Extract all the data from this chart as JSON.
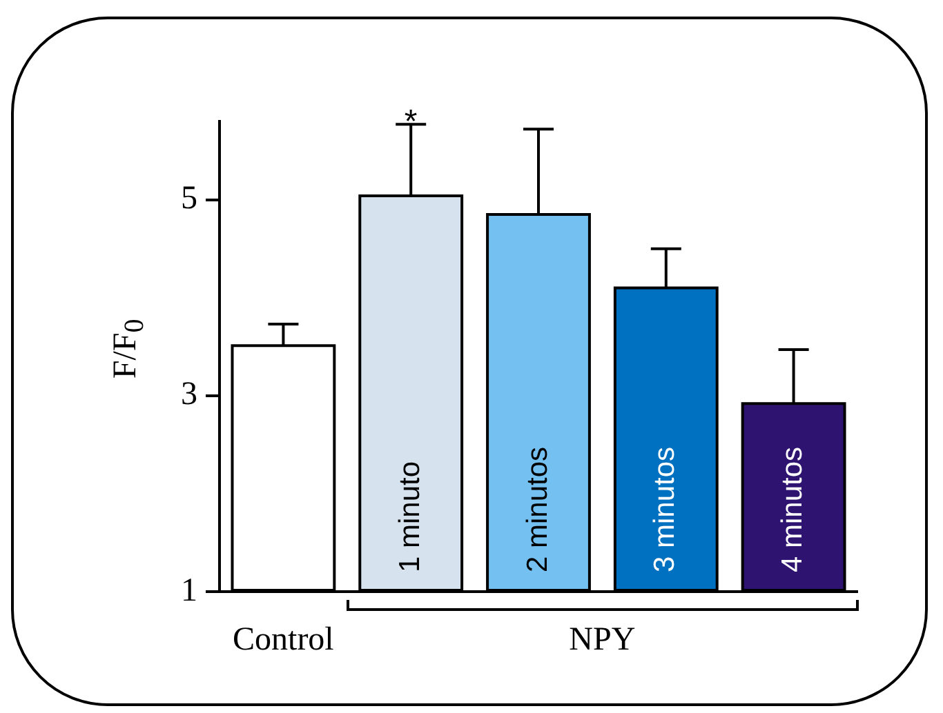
{
  "chart_data": {
    "type": "bar",
    "ylabel": "F/F$_{0}$",
    "categories": [
      "Control",
      "1 minuto",
      "2 minutos",
      "3 minutos",
      "4 minutos"
    ],
    "values": [
      3.51,
      5.04,
      4.85,
      4.1,
      2.92
    ],
    "errors": [
      0.22,
      0.73,
      0.87,
      0.4,
      0.55
    ],
    "colors": [
      "#ffffff",
      "#d6e2ee",
      "#74c0f0",
      "#0070c0",
      "#2e1470"
    ],
    "ylim": [
      1,
      5.8
    ],
    "yticks": [
      1,
      3,
      5
    ],
    "grid": false,
    "legend": false,
    "annotations": [
      {
        "text": "*",
        "x": "1 minuto",
        "y": 5.77
      },
      "NPY"
    ]
  }
}
